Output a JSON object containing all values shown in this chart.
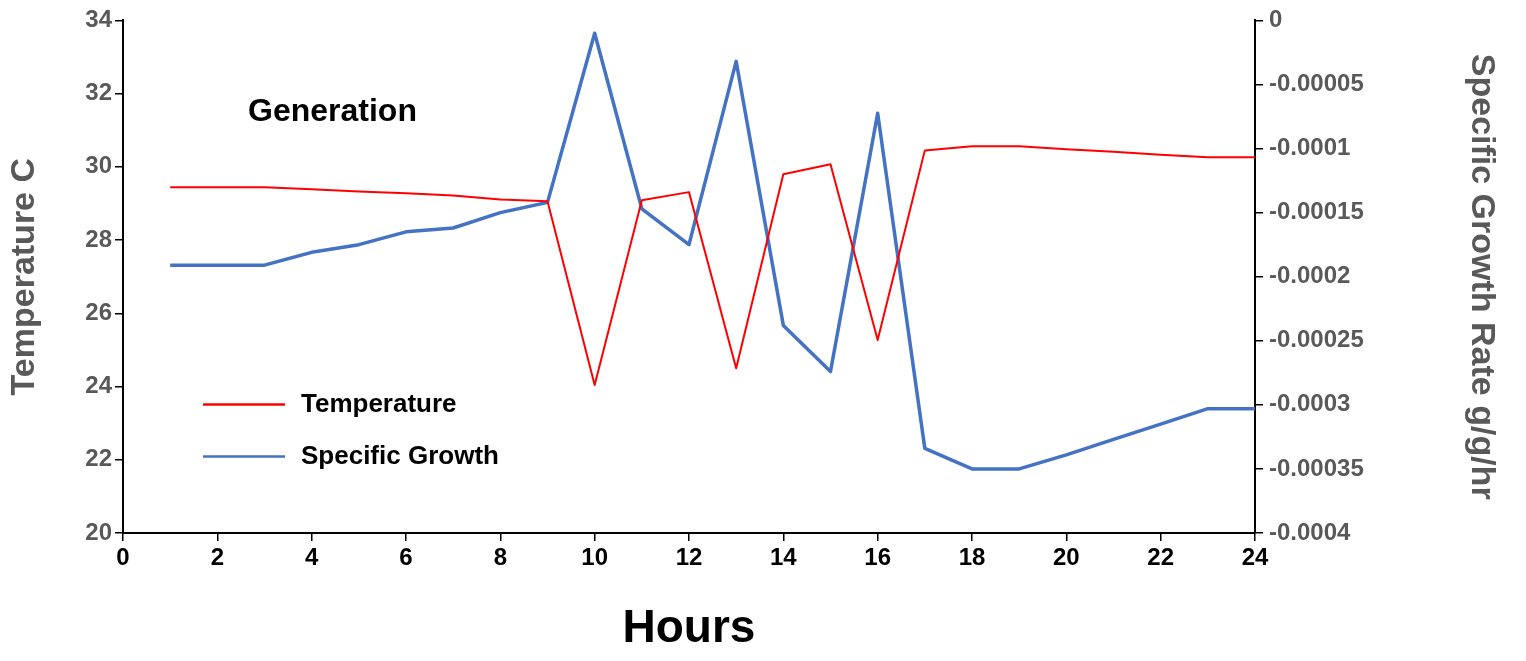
{
  "chart_data": {
    "type": "line",
    "xlabel": "Hours",
    "ylabel": "Temperature C",
    "y2label": "Specific Growth Rate g/g/hr",
    "annotations": [
      "Generation"
    ],
    "x": [
      1,
      2,
      3,
      4,
      5,
      6,
      7,
      8,
      9,
      10,
      11,
      12,
      13,
      14,
      15,
      16,
      17,
      18,
      19,
      20,
      21,
      22,
      23,
      24
    ],
    "series": [
      {
        "name": "Temperature",
        "color": "#ff0000",
        "values": [
          29.44,
          29.44,
          29.44,
          29.39,
          29.33,
          29.28,
          29.22,
          29.11,
          29.06,
          24.04,
          29.09,
          29.31,
          24.5,
          29.8,
          30.07,
          25.27,
          30.45,
          30.56,
          30.56,
          30.48,
          30.41,
          30.33,
          30.26,
          30.26
        ]
      },
      {
        "name": "Specific Growth",
        "color": "#4472c4",
        "axis": "y2",
        "values": [
          -0.000191,
          -0.000191,
          -0.000191,
          -0.000181,
          -0.000175,
          -0.000165,
          -0.000162,
          -0.00015,
          -0.000142,
          -1e-05,
          -0.000147,
          -0.000175,
          -3.2e-05,
          -0.000238,
          -0.000274,
          -7.25e-05,
          -0.000334,
          -0.00035,
          -0.00035,
          -0.000339,
          -0.000327,
          -0.000315,
          -0.000303,
          -0.000303
        ]
      }
    ],
    "xlim": [
      0,
      24
    ],
    "xticks": [
      0,
      2,
      4,
      6,
      8,
      10,
      12,
      14,
      16,
      18,
      20,
      22,
      24
    ],
    "ylim": [
      20,
      34
    ],
    "yticks": [
      20,
      22,
      24,
      26,
      28,
      30,
      32,
      34
    ],
    "y2lim": [
      -0.0004,
      0
    ],
    "y2ticks": [
      {
        "value": -0.0004,
        "label": "-0.0004"
      },
      {
        "value": -0.00035,
        "label": "-0.00035"
      },
      {
        "value": -0.0003,
        "label": "-0.0003"
      },
      {
        "value": -0.00025,
        "label": "-0.00025"
      },
      {
        "value": -0.0002,
        "label": "-0.0002"
      },
      {
        "value": -0.00015,
        "label": "-0.00015"
      },
      {
        "value": -0.0001,
        "label": "-0.0001"
      },
      {
        "value": -5e-05,
        "label": "-0.00005"
      },
      {
        "value": 0,
        "label": "0"
      }
    ],
    "grid": false,
    "legend": "left",
    "marker": "none",
    "line_style": "solid"
  }
}
